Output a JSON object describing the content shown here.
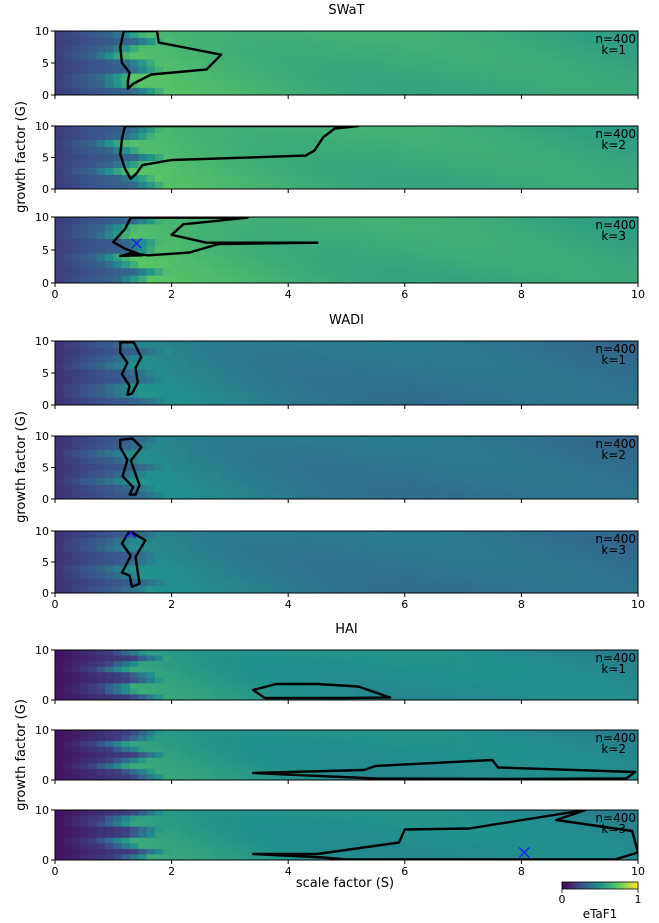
{
  "figure": {
    "xlabel": "scale factor (S)",
    "colorbar": {
      "label": "eTaF1",
      "min_label": "0",
      "max_label": "1"
    }
  },
  "chart_data": [
    {
      "type": "heatmap",
      "title": "SWaT",
      "ylabel": "growth factor (G)",
      "xlim": [
        0,
        10
      ],
      "x_ticks": [
        "0",
        "2",
        "4",
        "6",
        "8",
        "10"
      ],
      "colormap": "viridis",
      "zlim": [
        0,
        1
      ],
      "base_level": 0.62,
      "edge_level": 0.18,
      "panels": [
        {
          "label_n": "n=400",
          "label_k": "k=1",
          "ylim": [
            0,
            10
          ],
          "y_ticks": [
            "0",
            "5",
            "10"
          ],
          "contour": [
            [
              1.18,
              10
            ],
            [
              1.5,
              10
            ],
            [
              1.75,
              10
            ],
            [
              1.78,
              8.2
            ],
            [
              2.85,
              6.3
            ],
            [
              2.6,
              4
            ],
            [
              1.65,
              3.2
            ],
            [
              1.35,
              1.8
            ],
            [
              1.25,
              1
            ],
            [
              1.25,
              2.2
            ],
            [
              1.28,
              3.5
            ],
            [
              1.15,
              5
            ],
            [
              1.12,
              7.5
            ],
            [
              1.18,
              10
            ]
          ],
          "marker": null
        },
        {
          "label_n": "n=400",
          "label_k": "k=2",
          "ylim": [
            0,
            10
          ],
          "y_ticks": [
            "0",
            "5",
            "10"
          ],
          "contour": [
            [
              1.2,
              10
            ],
            [
              5.2,
              10
            ],
            [
              4.8,
              9.6
            ],
            [
              4.6,
              8.2
            ],
            [
              4.45,
              6.1
            ],
            [
              4.3,
              5.3
            ],
            [
              2.0,
              4.6
            ],
            [
              1.5,
              3.8
            ],
            [
              1.4,
              2.5
            ],
            [
              1.3,
              1.6
            ],
            [
              1.2,
              3.2
            ],
            [
              1.12,
              5.5
            ],
            [
              1.15,
              8
            ],
            [
              1.2,
              10
            ]
          ],
          "marker": null
        },
        {
          "label_n": "n=400",
          "label_k": "k=3",
          "ylim": [
            0,
            10
          ],
          "y_ticks": [
            "0",
            "5",
            "10"
          ],
          "contour": [
            [
              1.3,
              9.9
            ],
            [
              3.3,
              9.9
            ],
            [
              2.2,
              8.9
            ],
            [
              2.0,
              7.3
            ],
            [
              2.6,
              6.1
            ],
            [
              4.5,
              6.1
            ],
            [
              2.8,
              5.9
            ],
            [
              2.3,
              4.6
            ],
            [
              1.6,
              4.2
            ],
            [
              1.3,
              4.5
            ],
            [
              1.12,
              4.1
            ],
            [
              1.5,
              4.2
            ],
            [
              1.2,
              5.2
            ],
            [
              1.0,
              6.2
            ],
            [
              1.2,
              8.2
            ],
            [
              1.3,
              9.9
            ]
          ],
          "marker": [
            1.4,
            6.0
          ]
        }
      ]
    },
    {
      "type": "heatmap",
      "title": "WADI",
      "ylabel": "growth factor (G)",
      "xlim": [
        0,
        10
      ],
      "x_ticks": [
        "0",
        "2",
        "4",
        "6",
        "8",
        "10"
      ],
      "colormap": "viridis",
      "zlim": [
        0,
        1
      ],
      "base_level": 0.4,
      "edge_level": 0.15,
      "panels": [
        {
          "label_n": "n=400",
          "label_k": "k=1",
          "ylim": [
            0,
            10
          ],
          "y_ticks": [
            "0",
            "5",
            "10"
          ],
          "contour": [
            [
              1.12,
              9.8
            ],
            [
              1.35,
              9.8
            ],
            [
              1.48,
              7.5
            ],
            [
              1.38,
              5.8
            ],
            [
              1.42,
              3.5
            ],
            [
              1.32,
              1.8
            ],
            [
              1.24,
              1.6
            ],
            [
              1.28,
              3
            ],
            [
              1.15,
              4.8
            ],
            [
              1.24,
              6.6
            ],
            [
              1.12,
              8.2
            ],
            [
              1.12,
              9.8
            ]
          ],
          "marker": null
        },
        {
          "label_n": "n=400",
          "label_k": "k=2",
          "ylim": [
            0,
            10
          ],
          "y_ticks": [
            "0",
            "5",
            "10"
          ],
          "contour": [
            [
              1.12,
              9.4
            ],
            [
              1.33,
              9.6
            ],
            [
              1.48,
              8.2
            ],
            [
              1.3,
              6.1
            ],
            [
              1.45,
              2.2
            ],
            [
              1.38,
              0.7
            ],
            [
              1.28,
              0.7
            ],
            [
              1.34,
              1.9
            ],
            [
              1.16,
              3.6
            ],
            [
              1.24,
              6.2
            ],
            [
              1.12,
              8.2
            ],
            [
              1.12,
              9.4
            ]
          ],
          "marker": null
        },
        {
          "label_n": "n=400",
          "label_k": "k=3",
          "ylim": [
            0,
            10
          ],
          "y_ticks": [
            "0",
            "5",
            "10"
          ],
          "contour": [
            [
              1.28,
              10
            ],
            [
              1.55,
              8.5
            ],
            [
              1.38,
              5.8
            ],
            [
              1.45,
              1.5
            ],
            [
              1.32,
              1
            ],
            [
              1.28,
              2.8
            ],
            [
              1.15,
              3.3
            ],
            [
              1.3,
              6
            ],
            [
              1.15,
              8
            ],
            [
              1.28,
              10
            ]
          ],
          "marker": [
            1.3,
            9.7
          ]
        }
      ]
    },
    {
      "type": "heatmap",
      "title": "HAI",
      "ylabel": "growth factor (G)",
      "xlim": [
        0,
        10
      ],
      "x_ticks": [
        "0",
        "2",
        "4",
        "6",
        "8",
        "10"
      ],
      "colormap": "viridis",
      "zlim": [
        0,
        1
      ],
      "base_level": 0.5,
      "edge_level": 0.05,
      "panels": [
        {
          "label_n": "n=400",
          "label_k": "k=1",
          "ylim": [
            0,
            10
          ],
          "y_ticks": [
            "0",
            "10"
          ],
          "contour": [
            [
              3.8,
              3.2
            ],
            [
              4.5,
              3.2
            ],
            [
              5.2,
              2.7
            ],
            [
              5.75,
              0.5
            ],
            [
              5.0,
              0.4
            ],
            [
              3.6,
              0.4
            ],
            [
              3.5,
              1.2
            ],
            [
              3.4,
              2.0
            ],
            [
              3.8,
              3.2
            ]
          ],
          "marker": null
        },
        {
          "label_n": "n=400",
          "label_k": "k=2",
          "ylim": [
            0,
            10
          ],
          "y_ticks": [
            "0",
            "10"
          ],
          "contour": [
            [
              3.4,
              1.4
            ],
            [
              5.3,
              2.0
            ],
            [
              5.5,
              2.8
            ],
            [
              7.5,
              4.0
            ],
            [
              7.6,
              2.5
            ],
            [
              9.95,
              1.6
            ],
            [
              9.8,
              0.3
            ],
            [
              7.8,
              0.2
            ],
            [
              5.5,
              0.3
            ],
            [
              3.4,
              1.4
            ]
          ],
          "marker": null
        },
        {
          "label_n": "n=400",
          "label_k": "k=3",
          "ylim": [
            0,
            10
          ],
          "y_ticks": [
            "0",
            "10"
          ],
          "contour": [
            [
              3.4,
              1.2
            ],
            [
              4.5,
              1.2
            ],
            [
              5.9,
              3.5
            ],
            [
              6.0,
              6.1
            ],
            [
              7.1,
              6.3
            ],
            [
              9.1,
              10
            ],
            [
              8.6,
              8
            ],
            [
              9.9,
              5.8
            ],
            [
              10,
              1.5
            ],
            [
              9.6,
              0.1
            ],
            [
              5.0,
              0.1
            ],
            [
              4.6,
              0.5
            ],
            [
              3.4,
              1.2
            ]
          ],
          "marker": [
            8.05,
            1.5
          ]
        }
      ]
    }
  ]
}
